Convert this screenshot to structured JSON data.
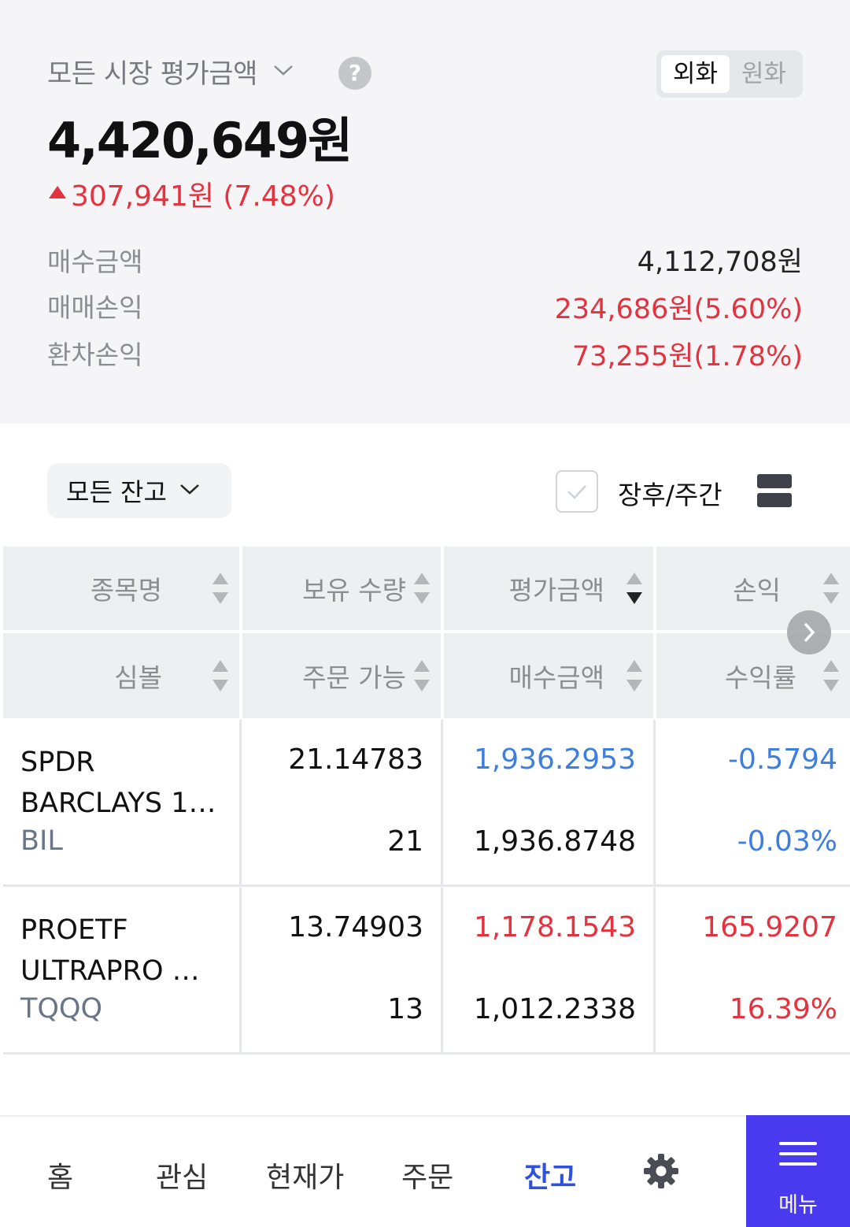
{
  "summary": {
    "market_label": "모든 시장 평가금액",
    "help": "?",
    "currency_toggle": {
      "foreign": "외화",
      "won": "원화",
      "selected": "외화"
    },
    "total_value": "4,420,649원",
    "change": "307,941원 (7.48%)",
    "metrics": [
      {
        "label": "매수금액",
        "value": "4,112,708원"
      },
      {
        "label": "매매손익",
        "value": "234,686원(5.60%)"
      },
      {
        "label": "환차손익",
        "value": "73,255원(1.78%)"
      }
    ]
  },
  "filter": {
    "balance_filter": "모든 잔고",
    "after_hours_label": "장후/주간",
    "after_hours_checked": false
  },
  "table": {
    "headers_row1": [
      "종목명",
      "보유 수량",
      "평가금액",
      "손익"
    ],
    "headers_row2": [
      "심볼",
      "주문 가능",
      "매수금액",
      "수익률"
    ],
    "rows": [
      {
        "name_line1": "SPDR",
        "name_line2": "BARCLAYS 1…",
        "symbol": "BIL",
        "quantity": "21.14783",
        "orderable": "21",
        "eval_amount": "1,936.2953",
        "buy_amount": "1,936.8748",
        "pnl": "-0.5794",
        "return_rate": "-0.03%"
      },
      {
        "name_line1": "PROETF",
        "name_line2": "ULTRAPRO …",
        "symbol": "TQQQ",
        "quantity": "13.74903",
        "orderable": "13",
        "eval_amount": "1,178.1543",
        "buy_amount": "1,012.2338",
        "pnl": "165.9207",
        "return_rate": "16.39%"
      }
    ]
  },
  "nav": {
    "items": [
      "홈",
      "관심",
      "현재가",
      "주문",
      "잔고"
    ],
    "active": "잔고",
    "menu": "메뉴"
  },
  "colors": {
    "up": "#e5323f",
    "down": "#3d7fe0",
    "accent": "#4a3aef",
    "nav_active": "#3050e0"
  }
}
